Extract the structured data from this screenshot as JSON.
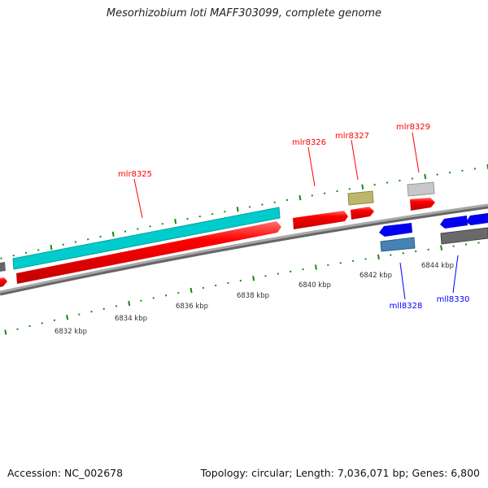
{
  "title": "Mesorhizobium loti MAFF303099, complete genome",
  "footer": {
    "accession": "Accession: NC_002678",
    "summary": "Topology: circular; Length: 7,036,071 bp; Genes: 6,800"
  },
  "colors": {
    "forward_label": "#ff0000",
    "reverse_label": "#0000ff",
    "ruler": "#138a13",
    "backbone": "#888888"
  },
  "genes": [
    {
      "name": "mlr8325",
      "strand": "forward"
    },
    {
      "name": "mlr8326",
      "strand": "forward"
    },
    {
      "name": "mlr8327",
      "strand": "forward"
    },
    {
      "name": "mlr8329",
      "strand": "forward"
    },
    {
      "name": "mll8328",
      "strand": "reverse"
    },
    {
      "name": "mll8330",
      "strand": "reverse"
    }
  ],
  "ruler_labels": [
    "6832 kbp",
    "6834 kbp",
    "6836 kbp",
    "6838 kbp",
    "6840 kbp",
    "6842 kbp",
    "6844 kbp"
  ]
}
